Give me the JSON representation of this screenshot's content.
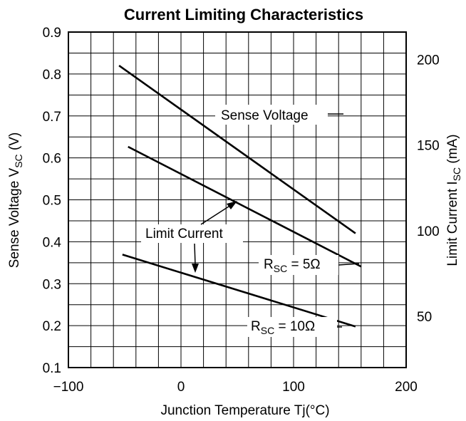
{
  "chart_data": {
    "type": "line",
    "title": "Current Limiting Characteristics",
    "xlabel": "Junction Temperature Tj(°C)",
    "ylabel": {
      "main": "Sense Voltage V",
      "sub": "SC",
      "unit": " (V)"
    },
    "y2label": {
      "main": "Limit Current I",
      "sub": "SC",
      "unit": " (mA)"
    },
    "xlim": [
      -100,
      200
    ],
    "ylim": [
      0.1,
      0.9
    ],
    "y2lim": [
      20,
      216
    ],
    "x_ticks": [
      "−100",
      "0",
      "100",
      "200"
    ],
    "y_ticks": [
      "0.1",
      "0.2",
      "0.3",
      "0.4",
      "0.5",
      "0.6",
      "0.7",
      "0.8",
      "0.9"
    ],
    "y2_ticks": [
      "50",
      "100",
      "150",
      "200"
    ],
    "grid": true,
    "series": [
      {
        "axis": "left",
        "x": [
          -55,
          155
        ],
        "y": [
          0.82,
          0.42
        ]
      },
      {
        "axis": "right",
        "x": [
          -47,
          160
        ],
        "y": [
          149,
          79
        ]
      },
      {
        "axis": "right",
        "x": [
          -52,
          155
        ],
        "y": [
          86,
          44
        ]
      }
    ],
    "annotations": {
      "sense_voltage": "Sense Voltage",
      "limit_current": "Limit Current",
      "rsc5": {
        "main": "R",
        "sub": "SC",
        "rest": " = 5Ω"
      },
      "rsc10": {
        "main": "R",
        "sub": "SC",
        "rest": " = 10Ω"
      }
    }
  }
}
